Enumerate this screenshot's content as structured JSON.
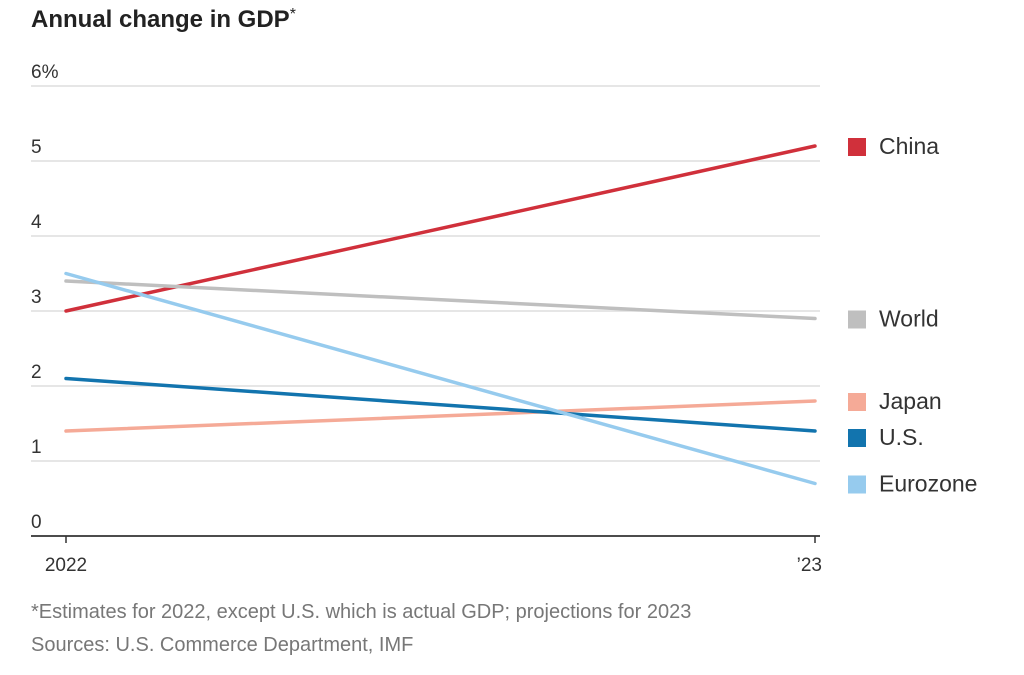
{
  "chart_data": {
    "type": "line",
    "title": "Annual change in GDP",
    "title_marker": "*",
    "x": [
      "2022",
      "’23"
    ],
    "ylim": [
      0,
      6
    ],
    "y_ticks": [
      {
        "value": 6,
        "label": "6%"
      },
      {
        "value": 5,
        "label": "5"
      },
      {
        "value": 4,
        "label": "4"
      },
      {
        "value": 3,
        "label": "3"
      },
      {
        "value": 2,
        "label": "2"
      },
      {
        "value": 1,
        "label": "1"
      },
      {
        "value": 0,
        "label": "0"
      }
    ],
    "grid": true,
    "legend_position": "right",
    "series": [
      {
        "name": "China",
        "values": [
          3.0,
          5.2
        ],
        "color": "#d0303b"
      },
      {
        "name": "World",
        "values": [
          3.4,
          2.9
        ],
        "color": "#bfbfbf"
      },
      {
        "name": "Japan",
        "values": [
          1.4,
          1.8
        ],
        "color": "#f5aa97"
      },
      {
        "name": "U.S.",
        "values": [
          2.1,
          1.4
        ],
        "color": "#1274ae"
      },
      {
        "name": "Eurozone",
        "values": [
          3.5,
          0.7
        ],
        "color": "#96cbee"
      }
    ]
  },
  "notes": {
    "footnote": "*Estimates for 2022, except U.S. which is actual GDP; projections for 2023",
    "sources": "Sources: U.S. Commerce Department, IMF"
  }
}
